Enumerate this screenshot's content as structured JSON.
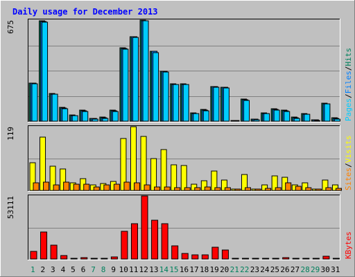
{
  "chart_data": [
    {
      "type": "bar",
      "title": "Daily usage for December 2013",
      "categories": [
        "1",
        "2",
        "3",
        "4",
        "5",
        "6",
        "7",
        "8",
        "9",
        "10",
        "11",
        "12",
        "13",
        "14",
        "15",
        "16",
        "17",
        "18",
        "19",
        "20",
        "21",
        "22",
        "23",
        "24",
        "25",
        "26",
        "27",
        "28",
        "29",
        "30",
        "31"
      ],
      "weekend_days": [
        "1",
        "7",
        "8",
        "14",
        "15",
        "21",
        "22",
        "28",
        "29"
      ],
      "panels": [
        {
          "name": "pages-files-hits",
          "max_label": "675",
          "ylim": [
            0,
            675
          ],
          "legend_order": [
            "Pages",
            "/",
            "Files",
            "/",
            "Hits"
          ],
          "series": [
            {
              "name": "Hits",
              "values": [
                255,
                670,
                185,
                91,
                42,
                72,
                19,
                26,
                72,
                488,
                565,
                675,
                468,
                335,
                249,
                249,
                56,
                78,
                232,
                228,
                2,
                147,
                14,
                56,
                81,
                73,
                27,
                51,
                9,
                120,
                22
              ]
            },
            {
              "name": "Files",
              "values": [
                252,
                665,
                182,
                88,
                39,
                68,
                17,
                24,
                68,
                485,
                562,
                672,
                465,
                332,
                246,
                246,
                53,
                75,
                229,
                225,
                1,
                144,
                12,
                53,
                78,
                70,
                24,
                48,
                7,
                117,
                19
              ]
            },
            {
              "name": "Pages",
              "values": [
                250,
                660,
                180,
                85,
                35,
                65,
                15,
                20,
                65,
                480,
                560,
                670,
                460,
                330,
                245,
                245,
                50,
                70,
                225,
                220,
                0,
                140,
                10,
                50,
                75,
                65,
                20,
                45,
                5,
                115,
                15
              ]
            }
          ]
        },
        {
          "name": "visits-sites",
          "max_label": "119",
          "ylim": [
            0,
            119
          ],
          "legend_order": [
            "Sites",
            "/",
            "Visits"
          ],
          "series": [
            {
              "name": "Visits",
              "values": [
                52,
                100,
                45,
                40,
                14,
                22,
                10,
                13,
                17,
                97,
                119,
                101,
                60,
                76,
                48,
                46,
                12,
                18,
                36,
                20,
                2,
                30,
                3,
                10,
                27,
                24,
                10,
                14,
                3,
                20,
                10
              ]
            },
            {
              "name": "Sites",
              "values": [
                14,
                16,
                10,
                15,
                11,
                12,
                7,
                10,
                11,
                15,
                14,
                10,
                6,
                6,
                5,
                5,
                5,
                6,
                5,
                5,
                2,
                5,
                3,
                4,
                5,
                14,
                8,
                5,
                2,
                5,
                4
              ]
            }
          ]
        },
        {
          "name": "kbytes",
          "max_label": "53111",
          "ylim": [
            0,
            53111
          ],
          "legend_order": [
            "KBytes"
          ],
          "series": [
            {
              "name": "KBytes",
              "values": [
                6500,
                22800,
                11800,
                2800,
                600,
                1100,
                700,
                700,
                1800,
                23500,
                29500,
                53111,
                32500,
                30000,
                11000,
                4800,
                3500,
                3500,
                10000,
                7500,
                200,
                200,
                200,
                200,
                200,
                1200,
                200,
                200,
                200,
                2500,
                200
              ]
            }
          ]
        }
      ],
      "colors": {
        "pages": "#00ccff",
        "files": "#0080ff",
        "hits": "#00805c",
        "visits": "#ffff00",
        "sites": "#ff8000",
        "kbytes": "#ff0000",
        "title": "#0000ff",
        "day_normal": "#000000",
        "day_weekend": "#00805c",
        "legend_slash": "#000000"
      }
    }
  ]
}
